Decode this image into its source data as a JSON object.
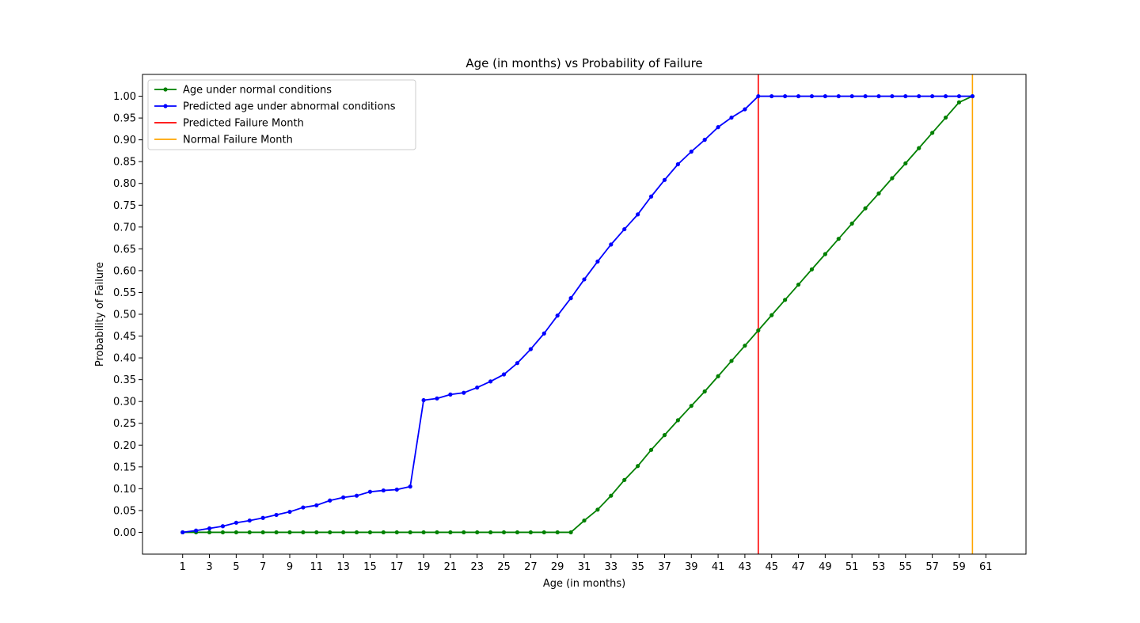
{
  "chart_data": {
    "type": "line",
    "title": "Age (in months) vs Probability of Failure",
    "xlabel": "Age (in months)",
    "ylabel": "Probability of Failure",
    "xlim": [
      -2,
      64
    ],
    "ylim": [
      -0.05,
      1.05
    ],
    "xticks": [
      1,
      3,
      5,
      7,
      9,
      11,
      13,
      15,
      17,
      19,
      21,
      23,
      25,
      27,
      29,
      31,
      33,
      35,
      37,
      39,
      41,
      43,
      45,
      47,
      49,
      51,
      53,
      55,
      57,
      59,
      61
    ],
    "yticks": [
      "0.00",
      "0.05",
      "0.10",
      "0.15",
      "0.20",
      "0.25",
      "0.30",
      "0.35",
      "0.40",
      "0.45",
      "0.50",
      "0.55",
      "0.60",
      "0.65",
      "0.70",
      "0.75",
      "0.80",
      "0.85",
      "0.90",
      "0.95",
      "1.00"
    ],
    "grid": false,
    "legend": "top-left",
    "series": [
      {
        "name": "Age under normal conditions",
        "color": "#008000",
        "marker": "circle",
        "x": [
          1,
          2,
          3,
          4,
          5,
          6,
          7,
          8,
          9,
          10,
          11,
          12,
          13,
          14,
          15,
          16,
          17,
          18,
          19,
          20,
          21,
          22,
          23,
          24,
          25,
          26,
          27,
          28,
          29,
          30,
          31,
          32,
          33,
          34,
          35,
          36,
          37,
          38,
          39,
          40,
          41,
          42,
          43,
          44,
          45,
          46,
          47,
          48,
          49,
          50,
          51,
          52,
          53,
          54,
          55,
          56,
          57,
          58,
          59,
          60
        ],
        "values": [
          0,
          0,
          0,
          0,
          0,
          0,
          0,
          0,
          0,
          0,
          0,
          0,
          0,
          0,
          0,
          0,
          0,
          0,
          0,
          0,
          0,
          0,
          0,
          0,
          0,
          0,
          0,
          0,
          0,
          0,
          0.027,
          0.052,
          0.084,
          0.12,
          0.152,
          0.189,
          0.223,
          0.257,
          0.29,
          0.323,
          0.358,
          0.393,
          0.428,
          0.463,
          0.498,
          0.533,
          0.568,
          0.603,
          0.638,
          0.673,
          0.708,
          0.743,
          0.777,
          0.812,
          0.846,
          0.881,
          0.916,
          0.951,
          0.986,
          1.0
        ]
      },
      {
        "name": "Predicted age under abnormal conditions",
        "color": "#0000ff",
        "marker": "circle",
        "x": [
          1,
          2,
          3,
          4,
          5,
          6,
          7,
          8,
          9,
          10,
          11,
          12,
          13,
          14,
          15,
          16,
          17,
          18,
          19,
          20,
          21,
          22,
          23,
          24,
          25,
          26,
          27,
          28,
          29,
          30,
          31,
          32,
          33,
          34,
          35,
          36,
          37,
          38,
          39,
          40,
          41,
          42,
          43,
          44,
          45,
          46,
          47,
          48,
          49,
          50,
          51,
          52,
          53,
          54,
          55,
          56,
          57,
          58,
          59,
          60
        ],
        "values": [
          0,
          0.004,
          0.009,
          0.014,
          0.022,
          0.027,
          0.033,
          0.04,
          0.047,
          0.057,
          0.062,
          0.073,
          0.08,
          0.084,
          0.093,
          0.096,
          0.098,
          0.105,
          0.303,
          0.307,
          0.316,
          0.32,
          0.332,
          0.346,
          0.362,
          0.388,
          0.42,
          0.456,
          0.497,
          0.537,
          0.58,
          0.621,
          0.66,
          0.695,
          0.729,
          0.77,
          0.808,
          0.844,
          0.873,
          0.9,
          0.929,
          0.951,
          0.97,
          1.0,
          1.0,
          1.0,
          1.0,
          1.0,
          1.0,
          1.0,
          1.0,
          1.0,
          1.0,
          1.0,
          1.0,
          1.0,
          1.0,
          1.0,
          1.0,
          1.0
        ]
      }
    ],
    "vlines": [
      {
        "name": "Predicted Failure Month",
        "x": 44,
        "color": "#ff0000"
      },
      {
        "name": "Normal Failure Month",
        "x": 60,
        "color": "#ffa500"
      }
    ]
  }
}
